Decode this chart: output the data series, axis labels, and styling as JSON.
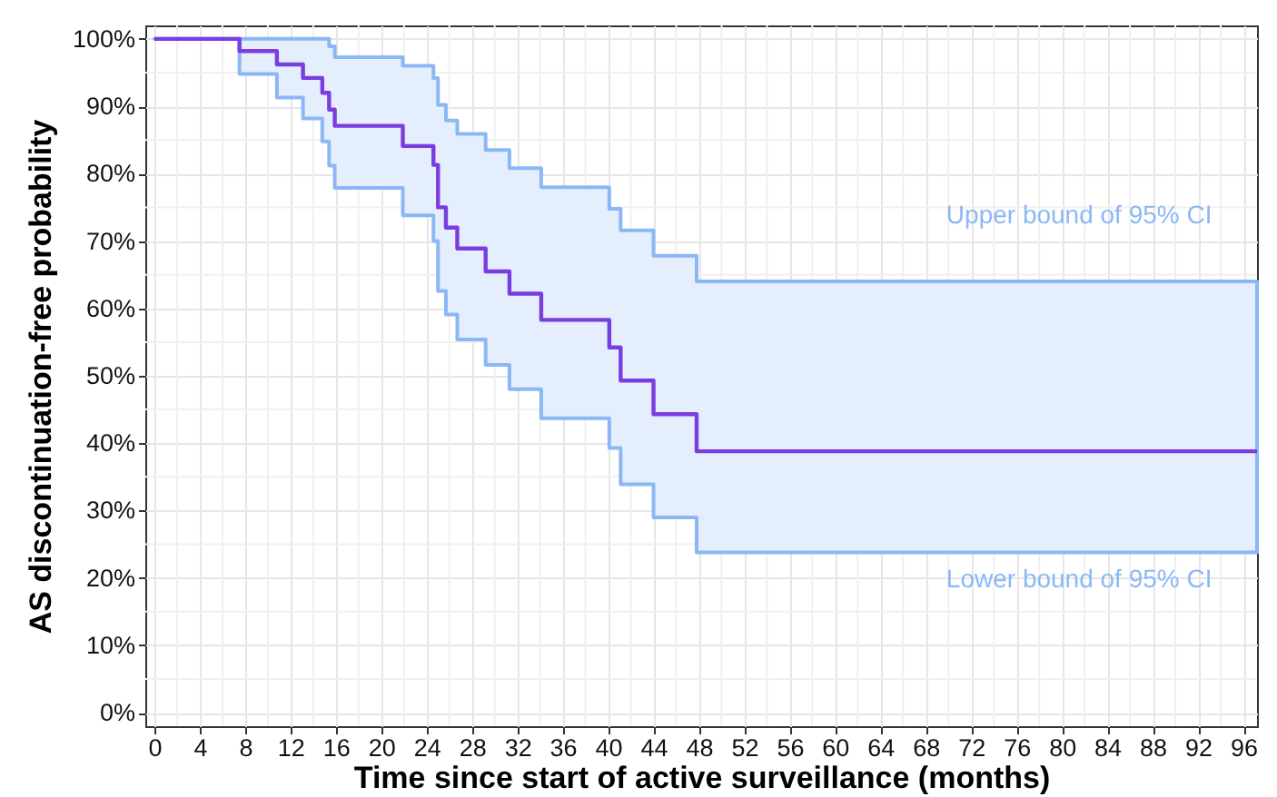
{
  "chart_data": {
    "type": "step",
    "xlabel": "Time since start of active surveillance (months)",
    "ylabel": "AS discontinuation-free probability",
    "series": [
      {
        "color": "#7a3de0",
        "x": [
          0,
          7.5,
          10.8,
          13.1,
          14.8,
          15.4,
          15.9,
          21.9,
          24.6,
          25.0,
          25.7,
          26.7,
          29.2,
          31.3,
          34.1,
          40.1,
          41.1,
          44.0,
          47.8,
          97.2
        ],
        "values": [
          100,
          98.2,
          96.2,
          94.2,
          92.0,
          89.5,
          87.1,
          84.1,
          81.3,
          75.0,
          72.0,
          68.9,
          65.5,
          62.2,
          58.3,
          54.2,
          49.3,
          44.3,
          38.8,
          38.8
        ],
        "lower": [
          100,
          94.8,
          91.3,
          88.2,
          84.8,
          81.2,
          77.9,
          73.8,
          70.0,
          62.6,
          59.1,
          55.4,
          51.6,
          48.0,
          43.7,
          39.3,
          33.9,
          29.0,
          23.8,
          23.8
        ],
        "upper": [
          100,
          100,
          100,
          100,
          100,
          98.9,
          97.3,
          96.0,
          94.2,
          90.2,
          87.9,
          85.9,
          83.5,
          80.8,
          78.0,
          74.8,
          71.6,
          67.8,
          64.0,
          64.0
        ]
      }
    ],
    "xlim": [
      -0.8,
      97.2
    ],
    "xticks": [
      0,
      4,
      8,
      12,
      16,
      20,
      24,
      28,
      32,
      36,
      40,
      44,
      48,
      52,
      56,
      60,
      64,
      68,
      72,
      76,
      80,
      84,
      88,
      92,
      96
    ],
    "ylim": [
      -2,
      102
    ],
    "yticks": [
      {
        "value": 0,
        "label": "0%"
      },
      {
        "value": 10,
        "label": "10%"
      },
      {
        "value": 20,
        "label": "20%"
      },
      {
        "value": 30,
        "label": "30%"
      },
      {
        "value": 40,
        "label": "40%"
      },
      {
        "value": 50,
        "label": "50%"
      },
      {
        "value": 60,
        "label": "60%"
      },
      {
        "value": 70,
        "label": "70%"
      },
      {
        "value": 80,
        "label": "80%"
      },
      {
        "value": 90,
        "label": "90%"
      },
      {
        "value": 100,
        "label": "100%"
      }
    ],
    "grid": true,
    "annotations": [
      "Upper bound of 95% CI",
      "Lower bound of 95% CI"
    ]
  }
}
